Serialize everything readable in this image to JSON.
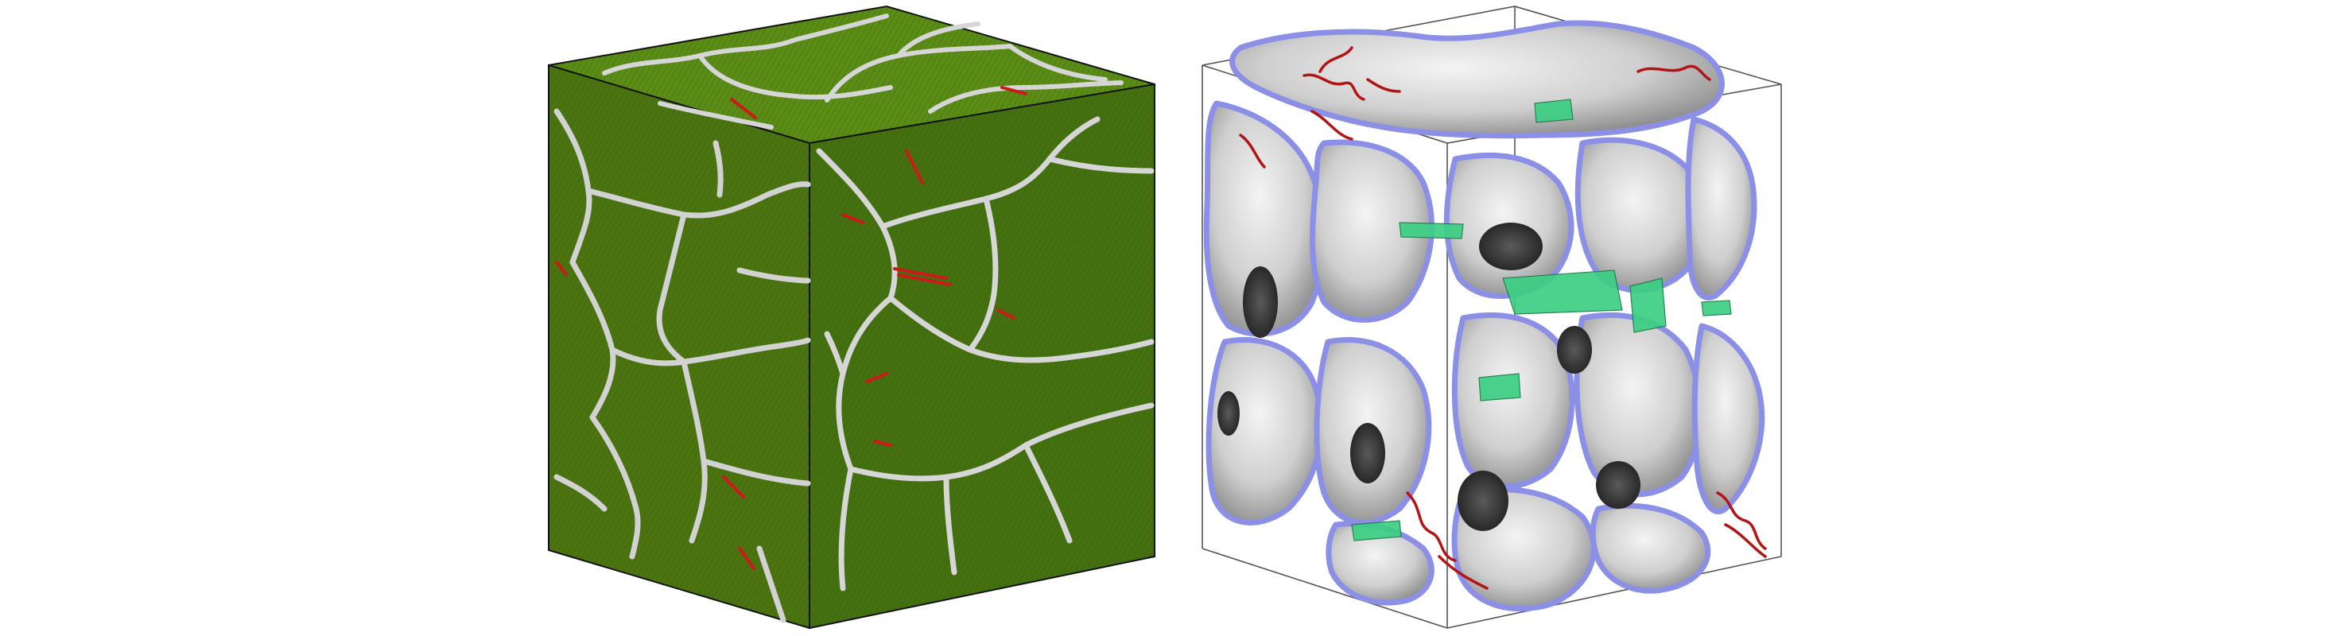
{
  "figure": {
    "panels": [
      {
        "id": "atomistic-cube",
        "description_visible": false,
        "colors": {
          "grain_fill_front": "#4b7410",
          "grain_fill_top": "#5a8c16",
          "grain_fill_side": "#3e6510",
          "grain_boundary": "#d6d6d6",
          "dislocation": "#cc1a1a",
          "edge": "#111111"
        }
      },
      {
        "id": "grain-boundary-network-cube",
        "colors": {
          "grain_surface": "#e6e6e6",
          "grain_shadow": "#9a9a9a",
          "grain_boundary_line": "#8c8fe6",
          "stacking_fault": "#3ccf83",
          "dislocation": "#b31515",
          "edge": "#555555"
        }
      }
    ]
  }
}
